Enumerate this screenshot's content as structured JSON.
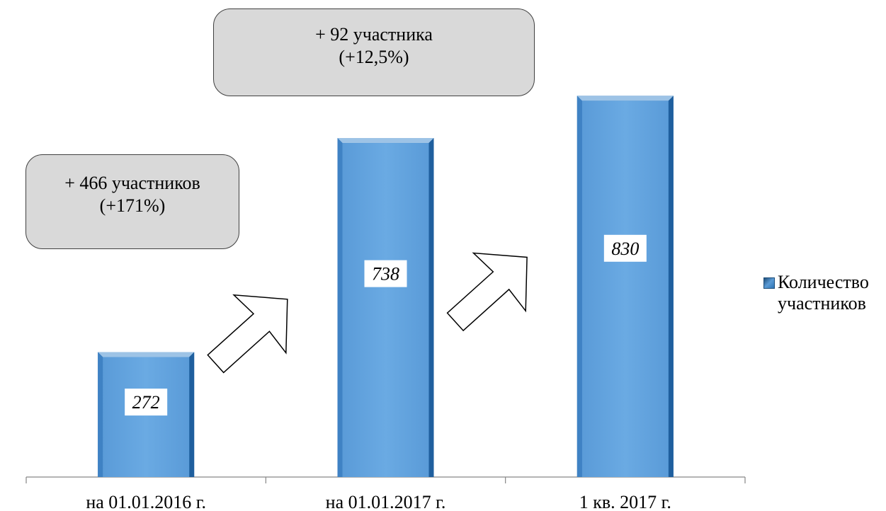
{
  "chart_data": {
    "type": "bar",
    "categories": [
      "на 01.01.2016 г.",
      "на 01.01.2017 г.",
      "1 кв. 2017 г."
    ],
    "series": [
      {
        "name": "Количество участников",
        "values": [
          272,
          738,
          830
        ],
        "value_labels": [
          "272",
          "738",
          "830"
        ]
      }
    ],
    "ylim": [
      0,
      1000
    ],
    "grid": false,
    "legend_position": "right",
    "bar_color": "#5b9bd5",
    "annotations": [
      {
        "line1": "+ 466 участников",
        "line2": "(+171%)"
      },
      {
        "line1": "+ 92 участника",
        "line2": "(+12,5%)"
      }
    ]
  }
}
